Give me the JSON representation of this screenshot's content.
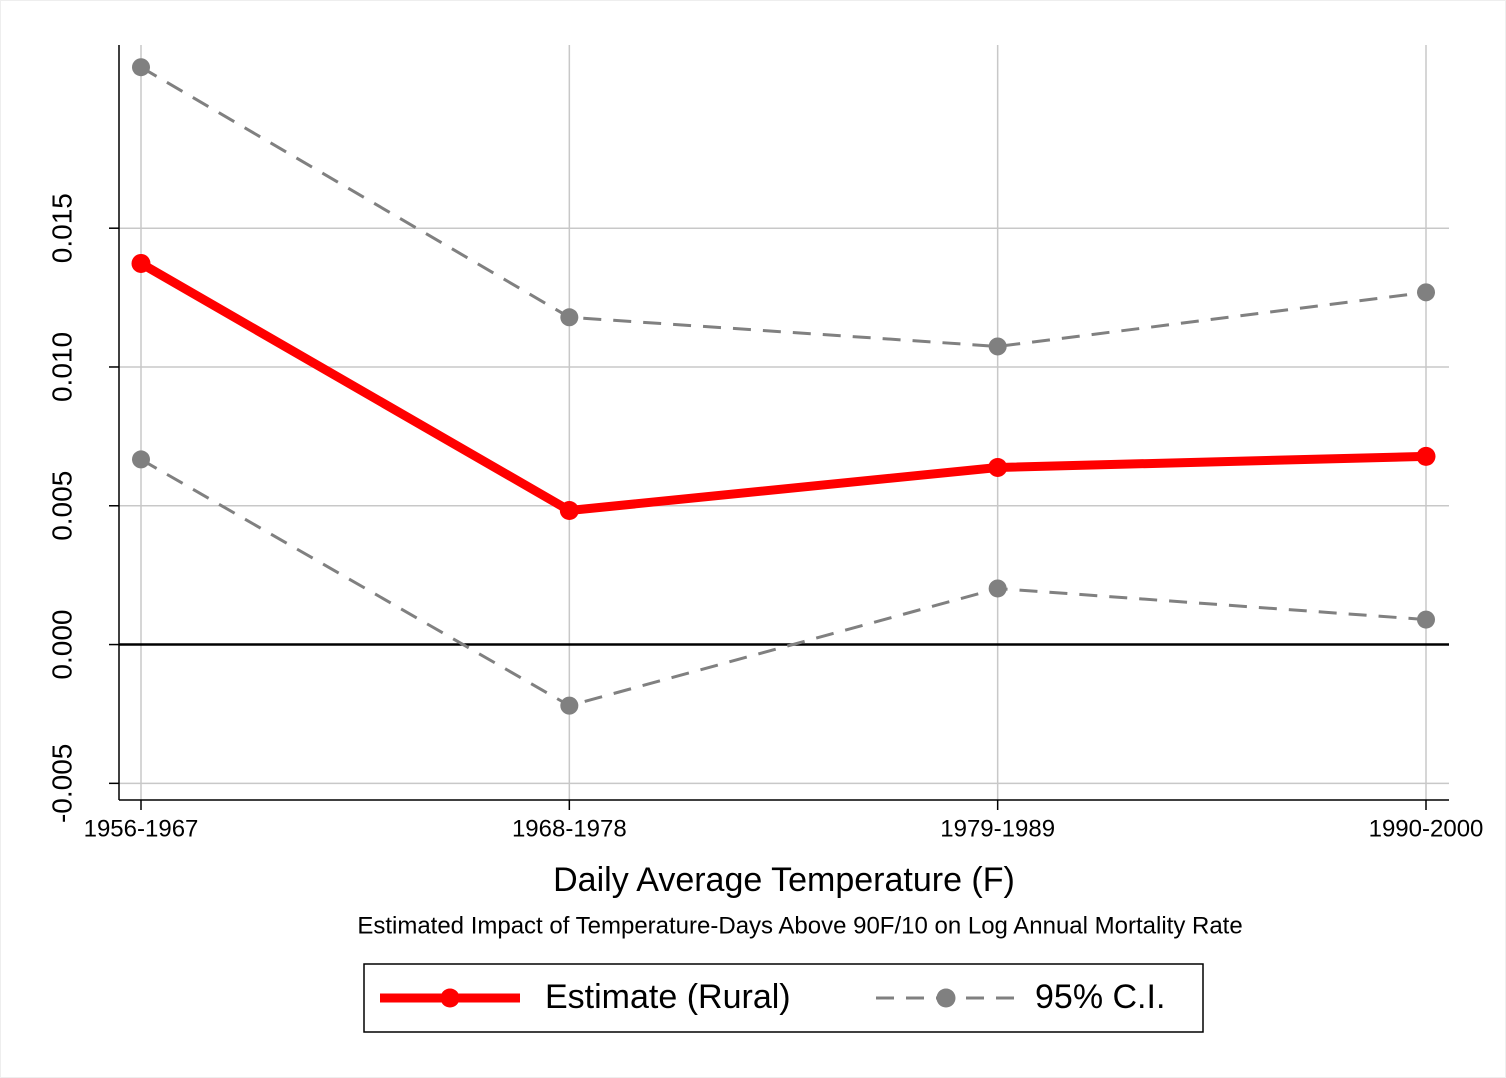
{
  "chart_data": {
    "type": "line",
    "x_label": "Daily Average Temperature (F)",
    "caption": "Estimated Impact of Temperature-Days Above 90F/10 on Log Annual Mortality Rate",
    "categories": [
      "1956-1967",
      "1968-1978",
      "1979-1989",
      "1990-2000"
    ],
    "series": [
      {
        "name": "Estimate (Rural)",
        "color": "#ff0000",
        "values": [
          0.01373,
          0.00483,
          0.00638,
          0.00678
        ]
      },
      {
        "name": "95% C.I.",
        "color": "#808080",
        "dashed": true,
        "values": [
          0.0208,
          0.01179,
          0.01074,
          0.01269
        ],
        "lower": [
          0.00667,
          -0.0022,
          0.00202,
          0.0009
        ]
      }
    ],
    "ylim": [
      -0.0056,
      0.0216
    ],
    "yticks": [
      -0.005,
      {
        "value": 0,
        "label": "0.000"
      },
      0.005,
      {
        "value": 0.01,
        "label": "0.010"
      },
      0.015
    ],
    "grid": true,
    "zero_line": true,
    "legend": "bottom"
  }
}
